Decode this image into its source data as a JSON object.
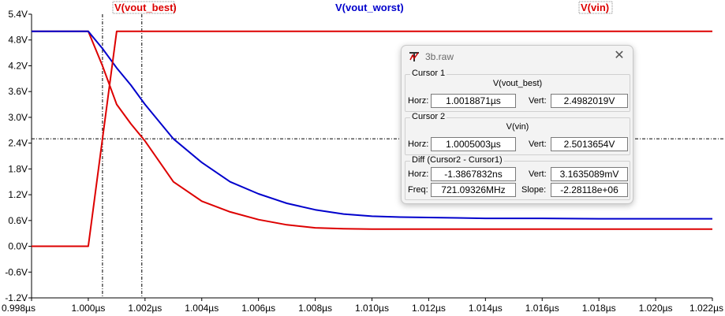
{
  "chart_data": {
    "type": "line",
    "title": "",
    "xlabel": "",
    "ylabel": "",
    "x_unit": "µs",
    "xlim": [
      0.998,
      1.022
    ],
    "ylim": [
      -1.2,
      5.4
    ],
    "grid": false,
    "legend_placement": "top",
    "x_ticks": [
      "0.998µs",
      "1.000µs",
      "1.002µs",
      "1.004µs",
      "1.006µs",
      "1.008µs",
      "1.010µs",
      "1.012µs",
      "1.014µs",
      "1.016µs",
      "1.018µs",
      "1.020µs",
      "1.022µs"
    ],
    "y_ticks": [
      "5.4V",
      "4.8V",
      "4.2V",
      "3.6V",
      "3.0V",
      "2.4V",
      "1.8V",
      "1.2V",
      "0.6V",
      "0.0V",
      "-0.6V",
      "-1.2V"
    ],
    "series": [
      {
        "name": "V(vout_best)",
        "color": "#dd0000",
        "x": [
          0.998,
          1.0,
          1.0005,
          1.001,
          1.0015,
          1.002,
          1.003,
          1.004,
          1.005,
          1.006,
          1.007,
          1.008,
          1.009,
          1.01,
          1.012,
          1.015,
          1.018,
          1.022
        ],
        "y": [
          5.0,
          5.0,
          4.2,
          3.3,
          2.85,
          2.45,
          1.5,
          1.05,
          0.8,
          0.62,
          0.5,
          0.43,
          0.41,
          0.4,
          0.4,
          0.4,
          0.4,
          0.4
        ]
      },
      {
        "name": "V(vout_worst)",
        "color": "#0000cc",
        "x": [
          0.998,
          1.0,
          1.0005,
          1.001,
          1.0015,
          1.002,
          1.003,
          1.004,
          1.005,
          1.006,
          1.007,
          1.008,
          1.009,
          1.01,
          1.011,
          1.012,
          1.013,
          1.014,
          1.016,
          1.018,
          1.02,
          1.022
        ],
        "y": [
          5.0,
          5.0,
          4.6,
          4.15,
          3.75,
          3.3,
          2.5,
          1.95,
          1.5,
          1.22,
          1.0,
          0.85,
          0.75,
          0.7,
          0.68,
          0.67,
          0.66,
          0.65,
          0.65,
          0.64,
          0.64,
          0.64
        ]
      },
      {
        "name": "V(vin)",
        "color": "#dd0000",
        "x": [
          0.998,
          1.0,
          1.001,
          1.022
        ],
        "y": [
          0.0,
          0.0,
          5.0,
          5.0
        ]
      }
    ],
    "cursors": {
      "cursor1_x": 1.0018871,
      "cursor2_x": 1.0005003,
      "cursor_y": 2.5
    }
  },
  "dialog": {
    "title": "3b.raw",
    "cursor1": {
      "legend": "Cursor 1",
      "trace": "V(vout_best)",
      "horz_label": "Horz:",
      "horz": "1.0018871µs",
      "vert_label": "Vert:",
      "vert": "2.4982019V"
    },
    "cursor2": {
      "legend": "Cursor 2",
      "trace": "V(vin)",
      "horz_label": "Horz:",
      "horz": "1.0005003µs",
      "vert_label": "Vert:",
      "vert": "2.5013654V"
    },
    "diff": {
      "legend": "Diff (Cursor2 - Cursor1)",
      "horz_label": "Horz:",
      "horz": "-1.3867832ns",
      "vert_label": "Vert:",
      "vert": "3.1635089mV",
      "freq_label": "Freq:",
      "freq": "721.09326MHz",
      "slope_label": "Slope:",
      "slope": "-2.28118e+06"
    },
    "close_icon": "close-icon"
  }
}
